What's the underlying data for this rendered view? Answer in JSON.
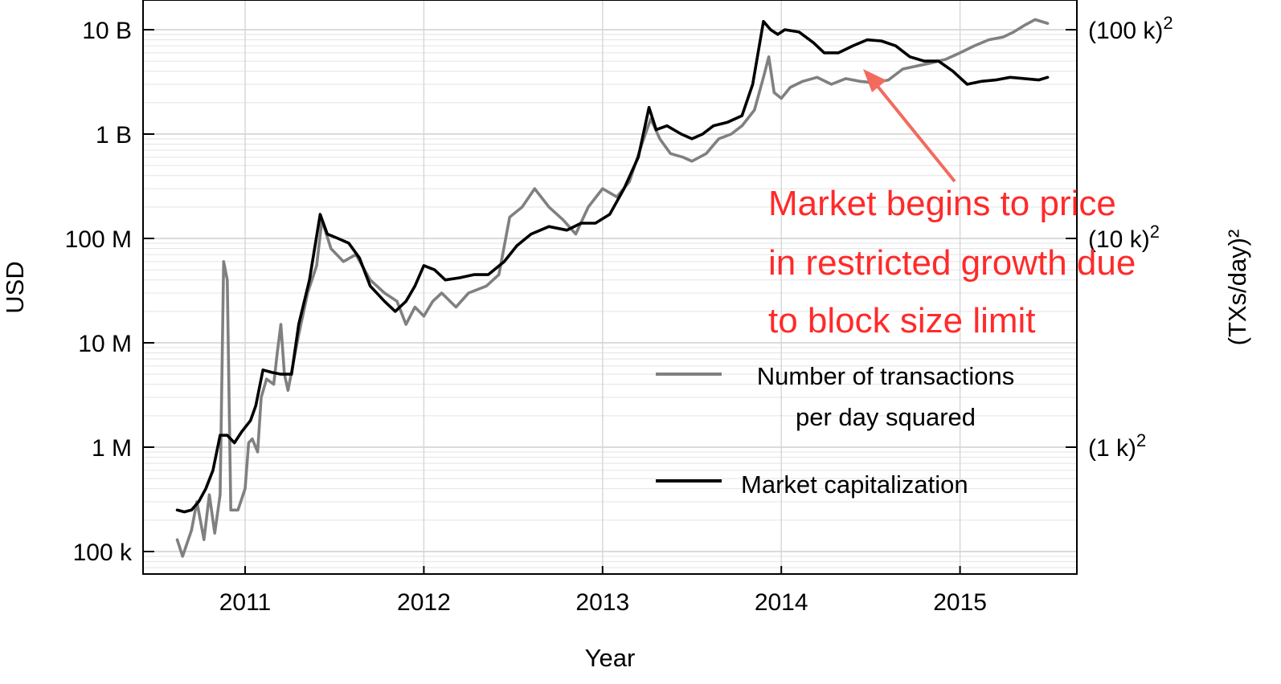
{
  "chart_data": {
    "type": "line",
    "xlabel": "Year",
    "ylabel": "USD",
    "y2label": "(TXs/day)²",
    "x_ticks": [
      2011,
      2012,
      2013,
      2014,
      2015
    ],
    "xlim": [
      2010.6,
      2015.65
    ],
    "y_scale": "log",
    "ylim": [
      50000,
      18000000000
    ],
    "y_ticks": [
      {
        "value": 100000,
        "label": "100 k"
      },
      {
        "value": 1000000,
        "label": "1 M"
      },
      {
        "value": 10000000,
        "label": "10 M"
      },
      {
        "value": 100000000,
        "label": "100 M"
      },
      {
        "value": 1000000000,
        "label": "1 B"
      },
      {
        "value": 10000000000,
        "label": "10 B"
      }
    ],
    "y2_ticks": [
      {
        "value": 1000000,
        "base": "(1 k)",
        "exp": "2"
      },
      {
        "value": 100000000,
        "base": "(10 k)",
        "exp": "2"
      },
      {
        "value": 10000000000,
        "base": "(100 k)",
        "exp": "2"
      }
    ],
    "grid": true,
    "legend_position": "center-right",
    "series": [
      {
        "name": "Number of transactions per day squared",
        "color": "#808080",
        "points": [
          [
            2010.62,
            130000
          ],
          [
            2010.65,
            90000
          ],
          [
            2010.7,
            160000
          ],
          [
            2010.73,
            300000
          ],
          [
            2010.77,
            130000
          ],
          [
            2010.8,
            350000
          ],
          [
            2010.83,
            150000
          ],
          [
            2010.86,
            350000
          ],
          [
            2010.88,
            60000000
          ],
          [
            2010.9,
            40000000
          ],
          [
            2010.92,
            250000
          ],
          [
            2010.96,
            250000
          ],
          [
            2011.0,
            400000
          ],
          [
            2011.02,
            1100000
          ],
          [
            2011.04,
            1200000
          ],
          [
            2011.07,
            900000
          ],
          [
            2011.09,
            3000000
          ],
          [
            2011.12,
            4500000
          ],
          [
            2011.16,
            4000000
          ],
          [
            2011.18,
            8000000
          ],
          [
            2011.2,
            15000000
          ],
          [
            2011.22,
            5000000
          ],
          [
            2011.24,
            3500000
          ],
          [
            2011.3,
            12000000
          ],
          [
            2011.35,
            30000000
          ],
          [
            2011.4,
            55000000
          ],
          [
            2011.43,
            150000000
          ],
          [
            2011.48,
            80000000
          ],
          [
            2011.55,
            60000000
          ],
          [
            2011.62,
            70000000
          ],
          [
            2011.7,
            40000000
          ],
          [
            2011.78,
            30000000
          ],
          [
            2011.85,
            25000000
          ],
          [
            2011.9,
            15000000
          ],
          [
            2011.95,
            22000000
          ],
          [
            2012.0,
            18000000
          ],
          [
            2012.05,
            25000000
          ],
          [
            2012.1,
            30000000
          ],
          [
            2012.18,
            22000000
          ],
          [
            2012.25,
            30000000
          ],
          [
            2012.35,
            35000000
          ],
          [
            2012.42,
            45000000
          ],
          [
            2012.48,
            160000000
          ],
          [
            2012.55,
            200000000
          ],
          [
            2012.62,
            300000000
          ],
          [
            2012.7,
            200000000
          ],
          [
            2012.78,
            150000000
          ],
          [
            2012.85,
            110000000
          ],
          [
            2012.92,
            200000000
          ],
          [
            2013.0,
            300000000
          ],
          [
            2013.08,
            250000000
          ],
          [
            2013.15,
            350000000
          ],
          [
            2013.22,
            800000000
          ],
          [
            2013.27,
            1400000000
          ],
          [
            2013.32,
            900000000
          ],
          [
            2013.38,
            650000000
          ],
          [
            2013.45,
            600000000
          ],
          [
            2013.5,
            550000000
          ],
          [
            2013.58,
            650000000
          ],
          [
            2013.65,
            900000000
          ],
          [
            2013.72,
            1000000000
          ],
          [
            2013.78,
            1200000000
          ],
          [
            2013.85,
            1700000000
          ],
          [
            2013.9,
            3500000000
          ],
          [
            2013.93,
            5500000000
          ],
          [
            2013.96,
            2500000000
          ],
          [
            2014.0,
            2200000000
          ],
          [
            2014.05,
            2800000000
          ],
          [
            2014.12,
            3200000000
          ],
          [
            2014.2,
            3500000000
          ],
          [
            2014.28,
            3000000000
          ],
          [
            2014.36,
            3400000000
          ],
          [
            2014.44,
            3200000000
          ],
          [
            2014.52,
            3100000000
          ],
          [
            2014.6,
            3300000000
          ],
          [
            2014.68,
            4200000000
          ],
          [
            2014.76,
            4500000000
          ],
          [
            2014.84,
            4800000000
          ],
          [
            2014.92,
            5200000000
          ],
          [
            2015.0,
            6000000000
          ],
          [
            2015.08,
            7000000000
          ],
          [
            2015.16,
            8000000000
          ],
          [
            2015.24,
            8500000000
          ],
          [
            2015.3,
            9500000000
          ],
          [
            2015.36,
            11000000000
          ],
          [
            2015.42,
            12500000000
          ],
          [
            2015.49,
            11500000000
          ]
        ]
      },
      {
        "name": "Market capitalization",
        "color": "#000000",
        "points": [
          [
            2010.62,
            250000
          ],
          [
            2010.66,
            240000
          ],
          [
            2010.7,
            250000
          ],
          [
            2010.74,
            300000
          ],
          [
            2010.78,
            400000
          ],
          [
            2010.82,
            600000
          ],
          [
            2010.86,
            1300000
          ],
          [
            2010.9,
            1300000
          ],
          [
            2010.94,
            1100000
          ],
          [
            2010.98,
            1400000
          ],
          [
            2011.03,
            1800000
          ],
          [
            2011.06,
            2500000
          ],
          [
            2011.1,
            5500000
          ],
          [
            2011.15,
            5200000
          ],
          [
            2011.2,
            5000000
          ],
          [
            2011.26,
            5000000
          ],
          [
            2011.3,
            15000000
          ],
          [
            2011.36,
            40000000
          ],
          [
            2011.42,
            170000000
          ],
          [
            2011.46,
            110000000
          ],
          [
            2011.52,
            100000000
          ],
          [
            2011.58,
            90000000
          ],
          [
            2011.64,
            65000000
          ],
          [
            2011.7,
            35000000
          ],
          [
            2011.78,
            25000000
          ],
          [
            2011.84,
            20000000
          ],
          [
            2011.9,
            25000000
          ],
          [
            2011.95,
            35000000
          ],
          [
            2012.0,
            55000000
          ],
          [
            2012.06,
            50000000
          ],
          [
            2012.12,
            40000000
          ],
          [
            2012.2,
            42000000
          ],
          [
            2012.28,
            45000000
          ],
          [
            2012.36,
            45000000
          ],
          [
            2012.45,
            60000000
          ],
          [
            2012.52,
            85000000
          ],
          [
            2012.6,
            110000000
          ],
          [
            2012.7,
            130000000
          ],
          [
            2012.8,
            120000000
          ],
          [
            2012.88,
            140000000
          ],
          [
            2012.96,
            140000000
          ],
          [
            2013.04,
            170000000
          ],
          [
            2013.12,
            300000000
          ],
          [
            2013.2,
            600000000
          ],
          [
            2013.26,
            1800000000
          ],
          [
            2013.3,
            1100000000
          ],
          [
            2013.36,
            1200000000
          ],
          [
            2013.44,
            1000000000
          ],
          [
            2013.5,
            900000000
          ],
          [
            2013.56,
            1000000000
          ],
          [
            2013.62,
            1200000000
          ],
          [
            2013.7,
            1300000000
          ],
          [
            2013.78,
            1500000000
          ],
          [
            2013.84,
            3000000000
          ],
          [
            2013.9,
            12000000000
          ],
          [
            2013.94,
            10000000000
          ],
          [
            2013.98,
            9000000000
          ],
          [
            2014.02,
            10000000000
          ],
          [
            2014.1,
            9500000000
          ],
          [
            2014.18,
            7500000000
          ],
          [
            2014.24,
            6000000000
          ],
          [
            2014.32,
            6000000000
          ],
          [
            2014.4,
            7000000000
          ],
          [
            2014.48,
            8000000000
          ],
          [
            2014.56,
            7800000000
          ],
          [
            2014.64,
            7000000000
          ],
          [
            2014.72,
            5500000000
          ],
          [
            2014.8,
            5000000000
          ],
          [
            2014.88,
            5000000000
          ],
          [
            2014.96,
            4000000000
          ],
          [
            2015.04,
            3000000000
          ],
          [
            2015.12,
            3200000000
          ],
          [
            2015.2,
            3300000000
          ],
          [
            2015.28,
            3500000000
          ],
          [
            2015.36,
            3400000000
          ],
          [
            2015.44,
            3300000000
          ],
          [
            2015.49,
            3500000000
          ]
        ]
      }
    ],
    "annotation": {
      "lines": [
        "Market begins to price",
        "in restricted growth due",
        "to block size limit"
      ],
      "color": "#ff2a2a",
      "arrow_color": "#f26b5e",
      "arrow_target": [
        2014.45,
        3900000000
      ]
    }
  }
}
